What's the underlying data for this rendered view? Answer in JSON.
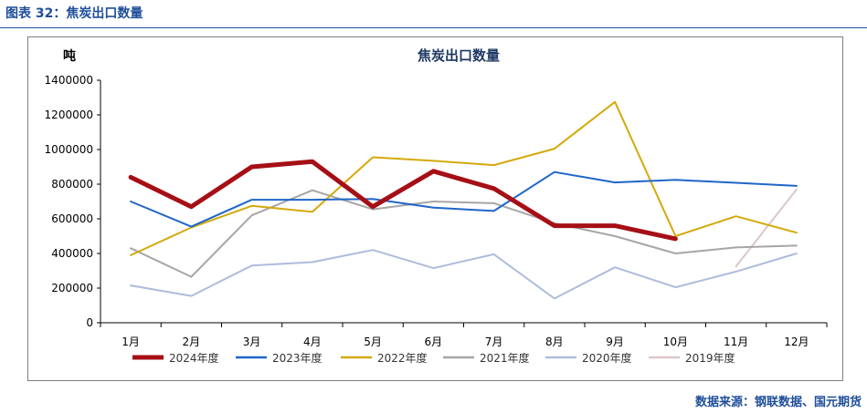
{
  "figure_caption": "图表 32：焦炭出口数量",
  "source": "数据来源：钢联数据、国元期货",
  "chart_data": {
    "type": "line",
    "title": "焦炭出口数量",
    "ylabel": "吨",
    "xlabel": "",
    "ylim": [
      0,
      1400000
    ],
    "yticks": [
      0,
      200000,
      400000,
      600000,
      800000,
      1000000,
      1200000,
      1400000
    ],
    "ytick_labels": [
      "0",
      "200000",
      "400000",
      "600000",
      "800000",
      "1000000",
      "1200000",
      "1400000"
    ],
    "categories": [
      "1月",
      "2月",
      "3月",
      "4月",
      "5月",
      "6月",
      "7月",
      "8月",
      "9月",
      "10月",
      "11月",
      "12月"
    ],
    "legend_position": "bottom",
    "grid": false,
    "series": [
      {
        "name": "2024年度",
        "color": "#a50f15",
        "width": 5,
        "values": [
          840000,
          670000,
          900000,
          930000,
          670000,
          875000,
          775000,
          560000,
          560000,
          485000,
          null,
          null
        ]
      },
      {
        "name": "2023年度",
        "color": "#1f66c8",
        "width": 2,
        "values": [
          700000,
          555000,
          710000,
          710000,
          715000,
          665000,
          645000,
          870000,
          810000,
          825000,
          808000,
          790000
        ]
      },
      {
        "name": "2022年度",
        "color": "#d4a90b",
        "width": 2,
        "values": [
          390000,
          550000,
          675000,
          640000,
          955000,
          935000,
          910000,
          1005000,
          1275000,
          500000,
          615000,
          520000
        ]
      },
      {
        "name": "2021年度",
        "color": "#a6a6a6",
        "width": 2,
        "values": [
          430000,
          265000,
          620000,
          765000,
          655000,
          700000,
          690000,
          575000,
          500000,
          400000,
          435000,
          445000
        ]
      },
      {
        "name": "2020年度",
        "color": "#aebcdb",
        "width": 2,
        "values": [
          215000,
          155000,
          330000,
          350000,
          420000,
          315000,
          395000,
          140000,
          320000,
          205000,
          295000,
          400000
        ]
      },
      {
        "name": "2019年度",
        "color": "#dcc6c9",
        "width": 2,
        "values": [
          null,
          null,
          null,
          null,
          null,
          null,
          null,
          null,
          null,
          null,
          325000,
          770000
        ]
      }
    ]
  }
}
